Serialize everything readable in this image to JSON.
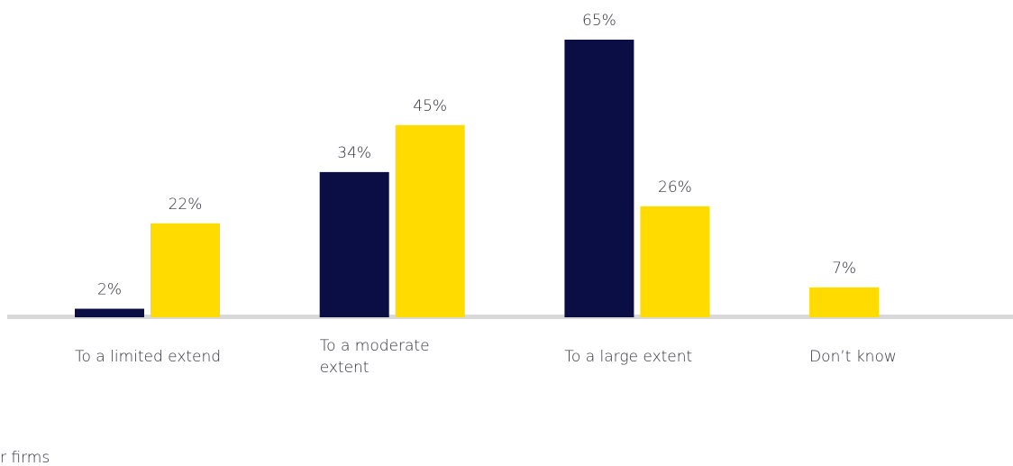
{
  "chart_data": {
    "type": "bar",
    "categories": [
      "To a limited extend",
      "To a moderate extent",
      "To a large extent",
      "Don’t know"
    ],
    "series": [
      {
        "color": "#0b0d45",
        "values": [
          2,
          34,
          65,
          null
        ],
        "value_labels": [
          "2%",
          "34%",
          "65%",
          null
        ]
      },
      {
        "color": "#ffdb00",
        "values": [
          22,
          45,
          26,
          7
        ],
        "value_labels": [
          "22%",
          "45%",
          "26%",
          "7%"
        ]
      }
    ],
    "ylim": [
      0,
      65
    ],
    "axis_color": "#d9d9d9",
    "note": "r firms"
  }
}
